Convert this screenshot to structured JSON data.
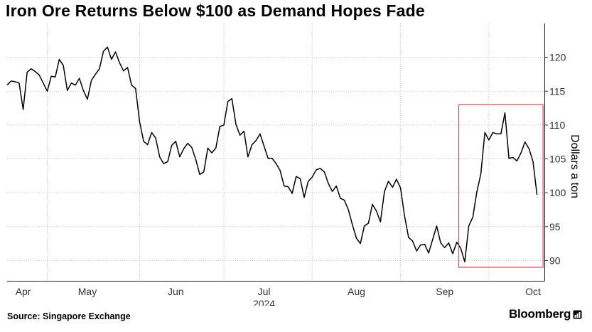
{
  "header": {
    "title": "Iron Ore Returns Below $100 as Demand Hopes Fade"
  },
  "footer": {
    "source": "Source: Singapore Exchange",
    "brand": "Bloomberg"
  },
  "colors": {
    "line": "#000000",
    "highlight_box": "#e84a5f",
    "grid": "#bfbfbf",
    "axis": "#222222"
  },
  "chart_data": {
    "type": "line",
    "title": "Iron Ore Returns Below $100 as Demand Hopes Fade",
    "ylabel": "Dollars a ton",
    "xlabel": "2024",
    "ylim": [
      87,
      125
    ],
    "xlim": [
      0,
      131
    ],
    "y_ticks": [
      90,
      95,
      100,
      105,
      110,
      115,
      120
    ],
    "x_ticks": [
      {
        "label": "Apr",
        "x": 4
      },
      {
        "label": "May",
        "x": 20
      },
      {
        "label": "Jun",
        "x": 42
      },
      {
        "label": "Jul",
        "x": 64
      },
      {
        "label": "Aug",
        "x": 87
      },
      {
        "label": "Sep",
        "x": 109
      },
      {
        "label": "Oct",
        "x": 131
      }
    ],
    "gridlines_x": [
      10,
      33,
      54,
      76,
      98,
      120
    ],
    "year_label": "2024",
    "highlight": {
      "x_range": [
        112.5,
        133.5
      ],
      "y_range": [
        89,
        113
      ]
    },
    "series": [
      {
        "name": "Iron ore",
        "values": [
          115.9,
          116.5,
          116.4,
          116.2,
          112.3,
          117.8,
          118.3,
          117.9,
          117.4,
          116.2,
          115.0,
          117.2,
          117.1,
          119.7,
          118.8,
          115.1,
          116.2,
          115.9,
          116.9,
          115.1,
          113.8,
          116.6,
          117.5,
          118.3,
          120.9,
          121.5,
          119.7,
          120.8,
          119.2,
          118.0,
          118.5,
          115.9,
          115.4,
          110.5,
          107.6,
          107.1,
          108.9,
          108.1,
          105.3,
          104.3,
          104.6,
          107.0,
          107.6,
          105.3,
          106.5,
          107.3,
          106.7,
          104.9,
          102.7,
          103.1,
          106.6,
          105.9,
          106.6,
          109.8,
          110.0,
          113.5,
          113.9,
          110.1,
          108.5,
          109.1,
          105.3,
          107.1,
          107.7,
          108.7,
          106.9,
          105.1,
          105.1,
          104.3,
          103.3,
          101.0,
          100.9,
          99.9,
          102.4,
          102.1,
          99.3,
          101.7,
          102.3,
          103.4,
          103.6,
          103.1,
          101.4,
          100.2,
          101.0,
          99.2,
          98.9,
          97.5,
          95.3,
          93.3,
          92.5,
          95.1,
          95.5,
          98.3,
          97.3,
          95.7,
          100.2,
          101.7,
          100.8,
          102.0,
          100.7,
          96.6,
          93.4,
          92.9,
          91.4,
          92.3,
          92.4,
          91.1,
          93.1,
          95.1,
          92.6,
          91.9,
          92.6,
          91.0,
          92.7,
          91.8,
          89.8,
          95.1,
          96.4,
          100.1,
          102.8,
          108.9,
          107.8,
          108.9,
          108.7,
          108.7,
          111.8,
          105.1,
          105.2,
          104.7,
          105.9,
          107.5,
          106.5,
          104.6,
          99.7
        ]
      }
    ]
  }
}
